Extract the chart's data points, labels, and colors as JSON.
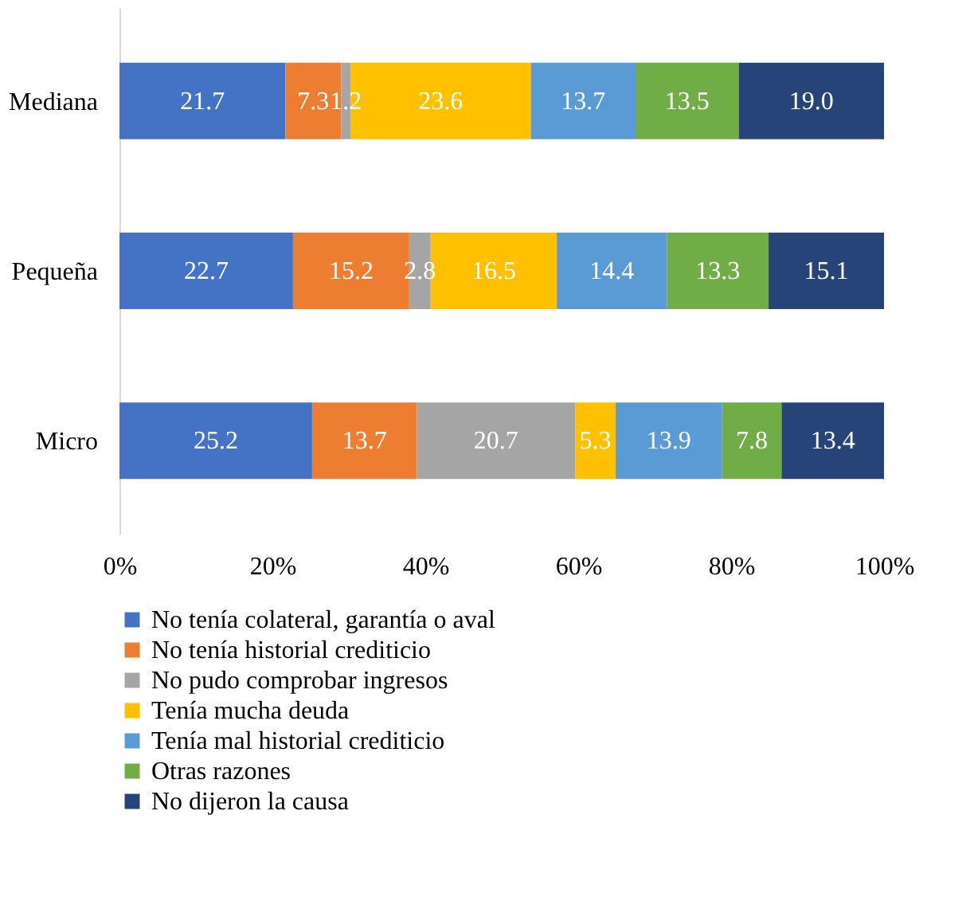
{
  "chart_data": {
    "type": "bar",
    "orientation": "horizontal",
    "stacked": true,
    "categories": [
      "Mediana",
      "Pequeña",
      "Micro"
    ],
    "series": [
      {
        "name": "No tenía colateral, garantía o aval",
        "color": "#4472c4",
        "values": [
          21.7,
          22.7,
          25.2
        ],
        "value_labels": [
          "21.7",
          "22.7",
          "25.2"
        ]
      },
      {
        "name": "No tenía historial crediticio",
        "color": "#ed7d31",
        "values": [
          7.3,
          15.2,
          13.7
        ],
        "value_labels": [
          "7.3",
          "15.2",
          "13.7"
        ]
      },
      {
        "name": "No pudo comprobar ingresos",
        "color": "#a5a5a5",
        "values": [
          1.2,
          2.8,
          20.7
        ],
        "value_labels": [
          "1.2",
          "2.8",
          "20.7"
        ]
      },
      {
        "name": "Tenía mucha deuda",
        "color": "#ffc000",
        "values": [
          23.6,
          16.5,
          5.3
        ],
        "value_labels": [
          "23.6",
          "16.5",
          "5.3"
        ]
      },
      {
        "name": "Tenía mal historial crediticio",
        "color": "#5b9bd5",
        "values": [
          13.7,
          14.4,
          13.9
        ],
        "value_labels": [
          "13.7",
          "14.4",
          "13.9"
        ]
      },
      {
        "name": "Otras razones",
        "color": "#70ad47",
        "values": [
          13.5,
          13.3,
          7.8
        ],
        "value_labels": [
          "13.5",
          "13.3",
          "7.8"
        ]
      },
      {
        "name": "No dijeron la causa",
        "color": "#264478",
        "values": [
          19.0,
          15.1,
          13.4
        ],
        "value_labels": [
          "19.0",
          "15.1",
          "13.4"
        ]
      }
    ],
    "xlim": [
      0,
      100
    ],
    "xticks": [
      {
        "value": 0,
        "label": "0%"
      },
      {
        "value": 20,
        "label": "20%"
      },
      {
        "value": 40,
        "label": "40%"
      },
      {
        "value": 60,
        "label": "60%"
      },
      {
        "value": 80,
        "label": "80%"
      },
      {
        "value": 100,
        "label": "100%"
      }
    ],
    "grid": false,
    "legend": "bottom"
  }
}
